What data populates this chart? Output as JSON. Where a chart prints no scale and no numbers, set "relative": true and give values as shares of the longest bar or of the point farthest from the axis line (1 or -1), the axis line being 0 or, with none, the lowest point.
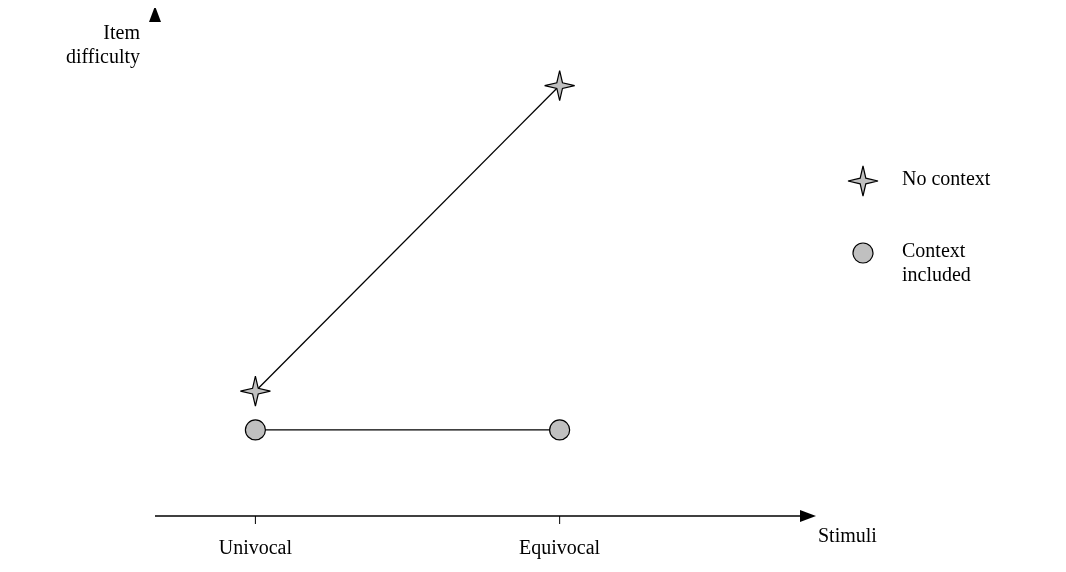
{
  "chart_data": {
    "type": "line",
    "xlabel": "Stimuli",
    "ylabel": "Item difficulty",
    "categories": [
      "Univocal",
      "Equivocal"
    ],
    "relative": true,
    "legend": "right",
    "grid": false,
    "series": [
      {
        "name": "No context",
        "color": "#c0c0c0",
        "marker": "star",
        "values": [
          0.29,
          1
        ]
      },
      {
        "name": "Context included",
        "color": "#c0c0c0",
        "marker": "circle",
        "values": [
          0.2,
          0.2
        ]
      }
    ]
  }
}
